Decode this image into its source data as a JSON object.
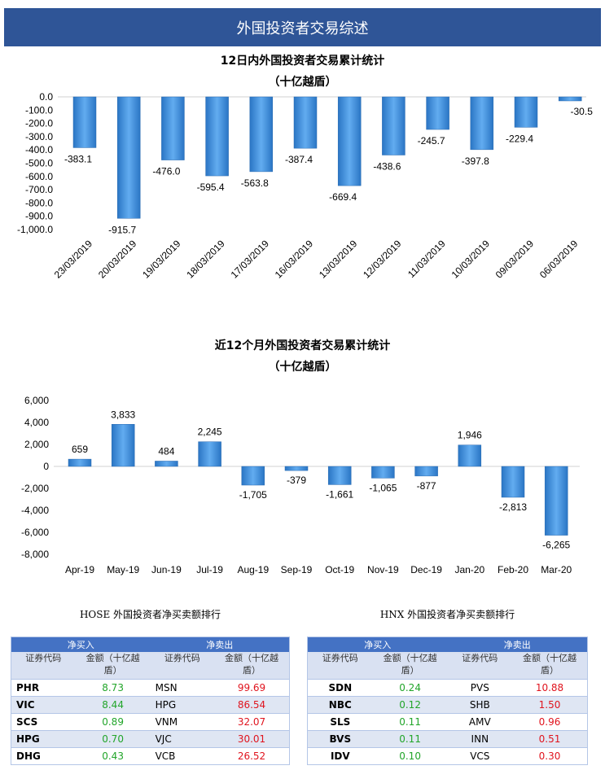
{
  "header": {
    "title": "外国投资者交易综述"
  },
  "chart_data": [
    {
      "type": "bar",
      "title": "12日内外国投资者交易累计统计",
      "subtitle": "（十亿越盾）",
      "categories": [
        "23/03/2019",
        "20/03/2019",
        "19/03/2019",
        "18/03/2019",
        "17/03/2019",
        "16/03/2019",
        "13/03/2019",
        "12/03/2019",
        "11/03/2019",
        "10/03/2019",
        "09/03/2019",
        "06/03/2019"
      ],
      "values": [
        -383.1,
        -915.7,
        -476.0,
        -595.4,
        -563.8,
        -387.4,
        -669.4,
        -438.6,
        -245.7,
        -397.8,
        -229.4,
        -30.5
      ],
      "labels": [
        "-383.1",
        "-915.7",
        "-476.0",
        "-595.4",
        "-563.8",
        "-387.4",
        "-669.4",
        "-438.6",
        "-245.7",
        "-397.8",
        "-229.4",
        "-30.5"
      ],
      "yticks": [
        "0.0",
        "-100.0",
        "-200.0",
        "-300.0",
        "-400.0",
        "-500.0",
        "-600.0",
        "-700.0",
        "-800.0",
        "-900.0",
        "-1,000.0"
      ],
      "ylim": [
        -1000,
        0
      ],
      "color": "#3d8fd9"
    },
    {
      "type": "bar",
      "title": "近12个月外国投资者交易累计统计",
      "subtitle": "（十亿越盾）",
      "categories": [
        "Apr-19",
        "May-19",
        "Jun-19",
        "Jul-19",
        "Aug-19",
        "Sep-19",
        "Oct-19",
        "Nov-19",
        "Dec-19",
        "Jan-20",
        "Feb-20",
        "Mar-20"
      ],
      "values": [
        659,
        3833,
        484,
        2245,
        -1705,
        -379,
        -1661,
        -1065,
        -877,
        1946,
        -2813,
        -6265
      ],
      "labels": [
        "659",
        "3,833",
        "484",
        "2,245",
        "-1,705",
        "-379",
        "-1,661",
        "-1,065",
        "-877",
        "1,946",
        "-2,813",
        "-6,265"
      ],
      "yticks": [
        "6,000",
        "4,000",
        "2,000",
        "0",
        "-2,000",
        "-4,000",
        "-6,000",
        "-8,000"
      ],
      "ylim": [
        -8000,
        6000
      ],
      "color": "#3d8fd9"
    }
  ],
  "tables": [
    {
      "title": "HOSE 外国投资者净买卖额排行",
      "buy": "净买入",
      "sell": "净卖出",
      "col_code": "证券代码",
      "col_amt": "金额（十亿越盾）",
      "rows": [
        [
          "PHR",
          "8.73",
          "MSN",
          "99.69"
        ],
        [
          "VIC",
          "8.44",
          "HPG",
          "86.54"
        ],
        [
          "SCS",
          "0.89",
          "VNM",
          "32.07"
        ],
        [
          "HPG",
          "0.70",
          "VJC",
          "30.01"
        ],
        [
          "DHG",
          "0.43",
          "VCB",
          "26.52"
        ]
      ]
    },
    {
      "title": "HNX 外国投资者净买卖额排行",
      "buy": "净买入",
      "sell": "净卖出",
      "col_code": "证券代码",
      "col_amt": "金额（十亿越盾）",
      "rows": [
        [
          "SDN",
          "0.24",
          "PVS",
          "10.88"
        ],
        [
          "NBC",
          "0.12",
          "SHB",
          "1.50"
        ],
        [
          "SLS",
          "0.11",
          "AMV",
          "0.96"
        ],
        [
          "BVS",
          "0.11",
          "INN",
          "0.51"
        ],
        [
          "IDV",
          "0.10",
          "VCS",
          "0.30"
        ]
      ]
    }
  ],
  "colors": {
    "header": "#2f5597",
    "table_head": "#4472c4",
    "buy": "#22a52a",
    "sell": "#e0141e"
  }
}
